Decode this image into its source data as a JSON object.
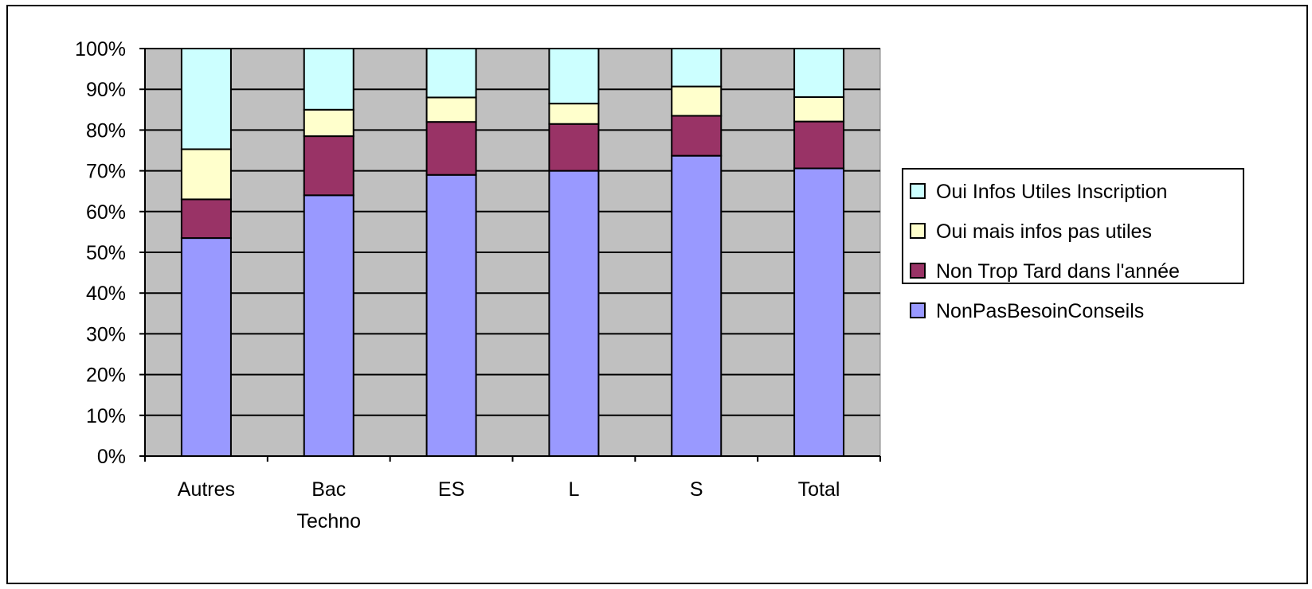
{
  "heading": "",
  "colors": {
    "plot_bg": "#c0c0c0",
    "grid": "#000000",
    "series": [
      "#9999ff",
      "#993366",
      "#ffffcc",
      "#ccffff"
    ]
  },
  "chart_data": {
    "type": "bar",
    "stacked": true,
    "percent": true,
    "categories": [
      "Autres",
      "Bac Techno",
      "ES",
      "L",
      "S",
      "Total"
    ],
    "series": [
      {
        "name": "NonPasBesoinConseils",
        "values": [
          53.5,
          64,
          69,
          70,
          73.7,
          70.6
        ]
      },
      {
        "name": "Non Trop Tard dans l'année",
        "values": [
          9.5,
          14.5,
          13,
          11.5,
          9.8,
          11.5
        ]
      },
      {
        "name": "Oui mais infos pas utiles",
        "values": [
          12.3,
          6.5,
          6,
          5,
          7.2,
          6
        ]
      },
      {
        "name": "Oui Infos Utiles Inscription",
        "values": [
          24.7,
          15,
          12,
          13.5,
          9.3,
          11.9
        ]
      }
    ],
    "legend_order": [
      "Oui Infos Utiles Inscription",
      "Oui mais infos pas utiles",
      "Non Trop Tard dans l'année",
      "NonPasBesoinConseils"
    ],
    "ylim": [
      0,
      100
    ],
    "yticks": [
      "0%",
      "10%",
      "20%",
      "30%",
      "40%",
      "50%",
      "60%",
      "70%",
      "80%",
      "90%",
      "100%"
    ],
    "legend_position": "right",
    "grid": true
  }
}
